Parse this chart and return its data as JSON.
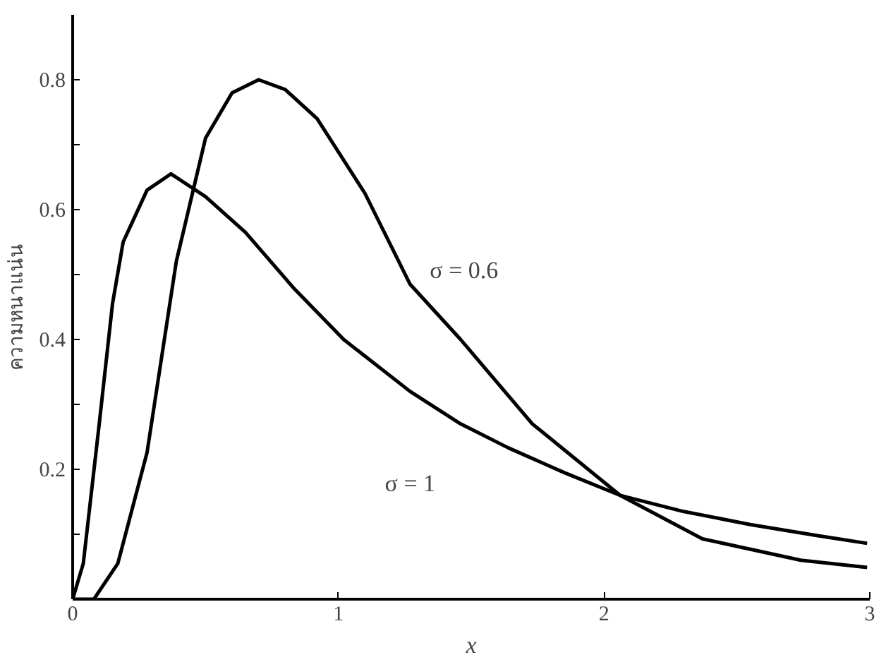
{
  "chart_data": {
    "type": "line",
    "xlabel": "x",
    "ylabel": "ความหนาแน่น",
    "xlim": [
      0,
      3
    ],
    "ylim": [
      0,
      0.9
    ],
    "xticks": [
      0,
      1,
      2,
      3
    ],
    "yticks": [
      {
        "value": 0.1,
        "label": null
      },
      0.2,
      {
        "value": 0.3,
        "label": null
      },
      0.4,
      {
        "value": 0.5,
        "label": null
      },
      0.6,
      {
        "value": 0.7,
        "label": null
      },
      0.8
    ],
    "grid": false,
    "line_style": "solid",
    "marker": "none",
    "series": [
      {
        "name": "σ = 1",
        "color": "#000000",
        "x": [
          0,
          0.04,
          0.1,
          0.15,
          0.19,
          0.28,
          0.37,
          0.5,
          0.65,
          0.83,
          1.02,
          1.27,
          1.46,
          1.64,
          1.85,
          2.06,
          2.3,
          2.55,
          2.8,
          2.99
        ],
        "values": [
          0,
          0.055,
          0.27,
          0.455,
          0.55,
          0.63,
          0.655,
          0.62,
          0.565,
          0.48,
          0.4,
          0.32,
          0.27,
          0.233,
          0.195,
          0.16,
          0.135,
          0.115,
          0.098,
          0.086
        ]
      },
      {
        "name": "σ = 0.6",
        "color": "#000000",
        "x": [
          0,
          0.08,
          0.17,
          0.28,
          0.39,
          0.5,
          0.6,
          0.7,
          0.8,
          0.92,
          1.1,
          1.27,
          1.46,
          1.73,
          2.06,
          2.37,
          2.74,
          2.99
        ],
        "values": [
          0,
          0,
          0.055,
          0.226,
          0.52,
          0.71,
          0.78,
          0.8,
          0.785,
          0.74,
          0.625,
          0.485,
          0.4,
          0.27,
          0.16,
          0.093,
          0.06,
          0.049
        ]
      }
    ]
  }
}
